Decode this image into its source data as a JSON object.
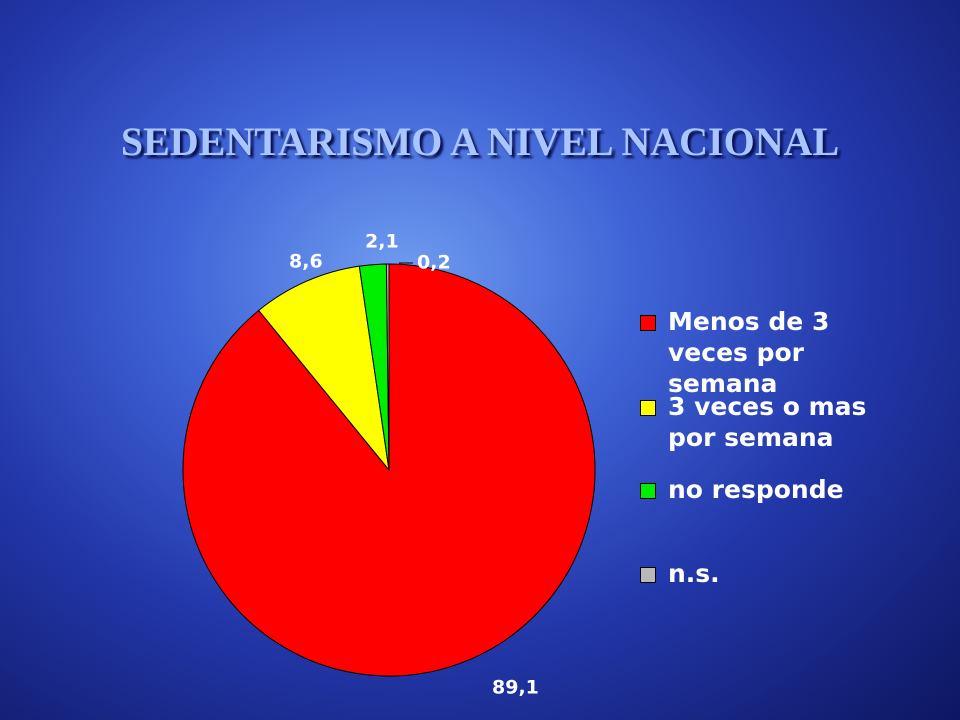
{
  "chart_data": {
    "type": "pie",
    "title": "SEDENTARISMO A NIVEL NACIONAL",
    "series": [
      {
        "name": "Menos de 3 veces por semana",
        "color": "#ff0000",
        "values": [
          89.1
        ]
      },
      {
        "name": "3 veces o mas por semana",
        "color": "#ffff00",
        "values": [
          8.6
        ]
      },
      {
        "name": "no responde",
        "color": "#00ee00",
        "values": [
          2.1
        ]
      },
      {
        "name": "n.s.",
        "color": "#b8b8b8",
        "values": [
          0.2
        ]
      }
    ],
    "value_labels": [
      "89,1",
      "8,6",
      "2,1",
      "0,2"
    ],
    "legend": "right"
  }
}
